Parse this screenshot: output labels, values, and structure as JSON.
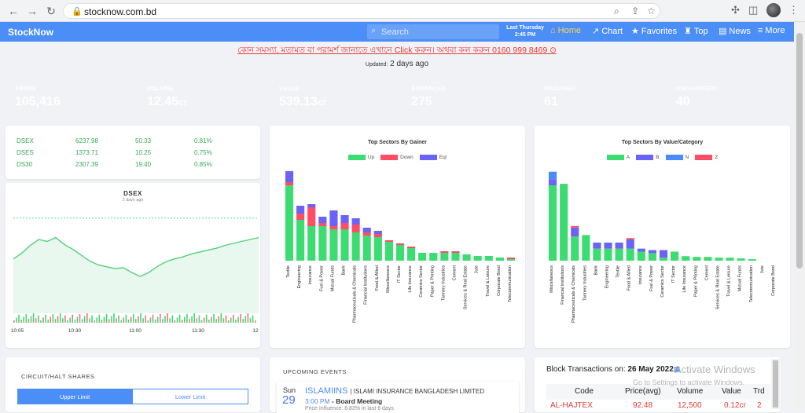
{
  "browser": {
    "url": "stocknow.com.bd"
  },
  "app": {
    "brand": "StockNow",
    "search_placeholder": "Search",
    "last_update_line1": "Last Thursday",
    "last_update_line2": "2:45 PM",
    "menu": [
      {
        "label": "Home",
        "icon": "home-icon"
      },
      {
        "label": "Chart",
        "icon": "chart-icon"
      },
      {
        "label": "Favorites",
        "icon": "star-icon"
      },
      {
        "label": "Top",
        "icon": "trophy-icon"
      },
      {
        "label": "News",
        "icon": "news-icon"
      },
      {
        "label": "More",
        "icon": "menu-icon"
      }
    ]
  },
  "banner": "কোন সমস্যা, মতামত বা পরামর্শ জানাতে এখানে Click করুন। অথবা কল করুন 0160 999 8469",
  "updated": {
    "label": "Updated:",
    "value": "2 days ago"
  },
  "stats": [
    {
      "label": "TRADE",
      "value": "105,416",
      "color": "#4ec3f7"
    },
    {
      "label": "VOLUME",
      "value": "12.45",
      "unit": "cr",
      "color": "#6c63f2"
    },
    {
      "label": "VALUE",
      "value": "539.13",
      "unit": "cr",
      "color": "#4a8cf7"
    },
    {
      "label": "ADVANCED",
      "value": "275",
      "color": "#3cc46c"
    },
    {
      "label": "DECLINED",
      "value": "61",
      "color": "#f04e5e"
    },
    {
      "label": "UNCHANGED",
      "value": "40",
      "color": "#6a63f5"
    }
  ],
  "indices": [
    {
      "name": "DSEX",
      "value": "6237.98",
      "change": "50.33",
      "pct": "0.81%"
    },
    {
      "name": "DSES",
      "value": "1373.71",
      "change": "10.25",
      "pct": "0.75%"
    },
    {
      "name": "DS30",
      "value": "2307.39",
      "change": "19.40",
      "pct": "0.85%"
    }
  ],
  "chart_data": [
    {
      "type": "line",
      "title": "DSEX",
      "subtitle": "2 days ago",
      "x_ticks": [
        "10:05",
        "10:30",
        "11:00",
        "11:30",
        "12"
      ],
      "series": [
        {
          "values": [
            6206,
            6212,
            6220,
            6226,
            6224,
            6228,
            6221,
            6216,
            6210,
            6204,
            6200,
            6198,
            6196,
            6197,
            6192,
            6188,
            6192,
            6198,
            6203,
            6206,
            6208,
            6211,
            6213,
            6215,
            6217,
            6220,
            6222,
            6224,
            6226,
            6228
          ]
        }
      ],
      "reference_line": 6248,
      "ylim": [
        6150,
        6260
      ]
    },
    {
      "type": "bar",
      "stacked": true,
      "title": "Top Sectors By Gainer",
      "legend": [
        "Up",
        "Down",
        "Eql"
      ],
      "colors": [
        "#3ddc72",
        "#ff4d66",
        "#6a63f5"
      ],
      "categories": [
        "Textile",
        "Engineering",
        "Insurance",
        "Fuel & Power",
        "Mutual Funds",
        "Bank",
        "Pharmaceuticals & Chemicals",
        "Financial Institutions",
        "Food & Allied",
        "Miscellaneous",
        "IT Sector",
        "Life Insurance",
        "Ceramics Sector",
        "Paper & Printing",
        "Tannery Industries",
        "Cement",
        "Services & Real Estate",
        "Jute",
        "Travel & Leisure",
        "Corporate Bond",
        "Telecommunication"
      ],
      "series": [
        {
          "name": "Up",
          "values": [
            48,
            26,
            22,
            22,
            20,
            20,
            18,
            16,
            15,
            12,
            10,
            8,
            5,
            5,
            5,
            5,
            4,
            3,
            3,
            2,
            1
          ]
        },
        {
          "name": "Down",
          "values": [
            2,
            4,
            12,
            2,
            2,
            4,
            5,
            2,
            2,
            1,
            1,
            1,
            0,
            0,
            1,
            1,
            0,
            0,
            0,
            0,
            1
          ]
        },
        {
          "name": "Eql",
          "values": [
            7,
            5,
            2,
            4,
            10,
            5,
            4,
            3,
            2,
            0,
            0,
            0,
            0,
            0,
            0,
            0,
            0,
            0,
            0,
            0,
            0
          ]
        }
      ],
      "ylim": [
        0,
        60
      ]
    },
    {
      "type": "bar",
      "stacked": true,
      "title": "Top Sectors By Value/Category",
      "legend": [
        "A",
        "B",
        "N",
        "Z"
      ],
      "colors": [
        "#3ddc72",
        "#6a63f5",
        "#4a8cf7",
        "#ff4d66"
      ],
      "categories": [
        "Miscellaneous",
        "Financial Institutions",
        "Pharmaceuticals & Chemicals",
        "Tannery Industries",
        "Bank",
        "Engineering",
        "Textile",
        "Food & Allied",
        "Insurance",
        "Fuel & Power",
        "Ceramics Sector",
        "IT Sector",
        "Life Insurance",
        "Paper & Printing",
        "Cement",
        "Services & Real Estate",
        "Travel & Leisure",
        "Mutual Funds",
        "Telecommunication",
        "Jute",
        "Corporate Bond"
      ],
      "series": [
        {
          "name": "A",
          "values": [
            100,
            102,
            32,
            34,
            16,
            16,
            16,
            16,
            12,
            10,
            4,
            12,
            6,
            5,
            5,
            4,
            4,
            3,
            2,
            0,
            0
          ]
        },
        {
          "name": "B",
          "values": [
            8,
            0,
            12,
            0,
            8,
            8,
            8,
            12,
            4,
            4,
            10,
            0,
            0,
            0,
            0,
            0,
            0,
            0,
            0,
            0,
            0
          ]
        },
        {
          "name": "N",
          "values": [
            10,
            0,
            0,
            0,
            0,
            0,
            0,
            0,
            0,
            0,
            0,
            0,
            0,
            0,
            0,
            0,
            0,
            0,
            0,
            0,
            0
          ]
        },
        {
          "name": "Z",
          "values": [
            0,
            0,
            2,
            0,
            0,
            0,
            0,
            2,
            0,
            0,
            0,
            0,
            0,
            0,
            0,
            0,
            0,
            0,
            0,
            0,
            0
          ]
        }
      ],
      "ylim": [
        0,
        125
      ]
    }
  ],
  "circuit": {
    "title": "CIRCUIT/HALT SHARES",
    "tabs": [
      "Upper Limit",
      "Lower Limit"
    ]
  },
  "events": {
    "title": "UPCOMING EVENTS",
    "items": [
      {
        "day": "Sun",
        "date": "29",
        "symbol": "ISLAMIINS",
        "company": "| ISLAMI INSURANCE BANGLADESH LIMITED",
        "time": "3:00 PM",
        "event": "- Board Meeting",
        "note": "Price Influence: 6.83% in last 6 days"
      }
    ]
  },
  "block": {
    "label": "Block Transactions on:",
    "date": "26 May 2022",
    "columns": [
      "Code",
      "Price(avg)",
      "Volume",
      "Value",
      "Trd"
    ],
    "rows": [
      {
        "code": "AL-HAJTEX",
        "price": "92.48",
        "volume": "12,500",
        "value": "0.12cr",
        "trd": "2"
      }
    ]
  },
  "watermark": {
    "line1": "Activate Windows",
    "line2": "Go to Settings to activate Windows."
  }
}
